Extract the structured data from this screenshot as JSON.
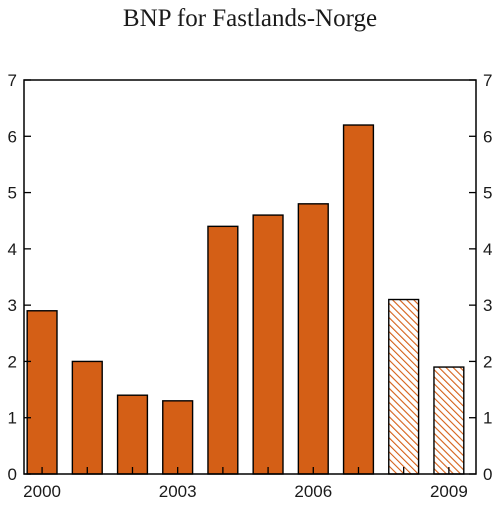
{
  "chart_data": {
    "type": "bar",
    "title": "BNP for Fastlands-Norge",
    "xlabel": "",
    "ylabel": "",
    "x": [
      2000,
      2001,
      2002,
      2003,
      2004,
      2005,
      2006,
      2007,
      2008,
      2009
    ],
    "values": [
      2.9,
      2.0,
      1.4,
      1.3,
      4.4,
      4.6,
      4.8,
      6.2,
      3.1,
      1.9
    ],
    "forecast": [
      false,
      false,
      false,
      false,
      false,
      false,
      false,
      false,
      true,
      true
    ],
    "x_tick_labels": [
      "2000",
      "2003",
      "2006",
      "2009"
    ],
    "x_tick_values": [
      2000,
      2003,
      2006,
      2009
    ],
    "y_ticks": [
      0,
      1,
      2,
      3,
      4,
      5,
      6,
      7
    ],
    "ylim": [
      0,
      7
    ],
    "xlim": [
      1999.6,
      2009.6
    ],
    "right_axis_mirrored": true,
    "grid": false,
    "colors": {
      "bar_fill": "#d45f16",
      "bar_stroke": "#000000",
      "forecast_hatch": "#d45f16",
      "axis": "#000000"
    }
  }
}
